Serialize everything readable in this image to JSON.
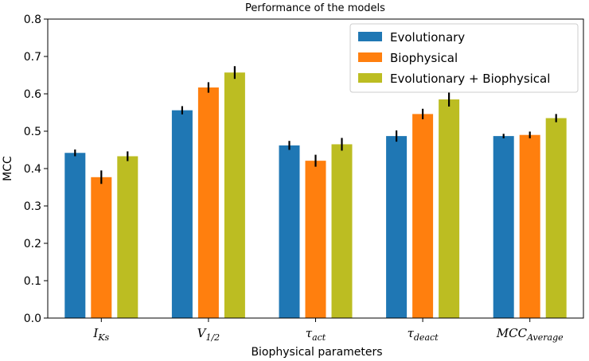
{
  "chart_data": {
    "type": "bar",
    "title": "Performance of the models",
    "xlabel": "Biophysical parameters",
    "ylabel": "MCC",
    "ylim": [
      0,
      0.8
    ],
    "yticks": [
      "0.0",
      "0.1",
      "0.2",
      "0.3",
      "0.4",
      "0.5",
      "0.6",
      "0.7",
      "0.8"
    ],
    "categories": [
      {
        "main": "I",
        "sub": "Ks"
      },
      {
        "main": "V",
        "sub": "1/2"
      },
      {
        "main": "τ",
        "sub": "act"
      },
      {
        "main": "τ",
        "sub": "deact"
      },
      {
        "main": "MCC",
        "sub": "Average"
      }
    ],
    "series": [
      {
        "name": "Evolutionary",
        "color": "#1f77b4",
        "values": [
          0.442,
          0.556,
          0.462,
          0.487,
          0.487
        ],
        "errors": [
          0.009,
          0.011,
          0.012,
          0.015,
          0.006
        ]
      },
      {
        "name": "Biophysical",
        "color": "#ff7f0e",
        "values": [
          0.377,
          0.617,
          0.421,
          0.546,
          0.49
        ],
        "errors": [
          0.018,
          0.014,
          0.016,
          0.014,
          0.009
        ]
      },
      {
        "name": "Evolutionary + Biophysical",
        "color": "#bcbd22",
        "values": [
          0.433,
          0.657,
          0.465,
          0.585,
          0.535
        ],
        "errors": [
          0.013,
          0.017,
          0.017,
          0.019,
          0.011
        ]
      }
    ],
    "legend_position": "top-right",
    "error_bar_color": "#000000"
  }
}
